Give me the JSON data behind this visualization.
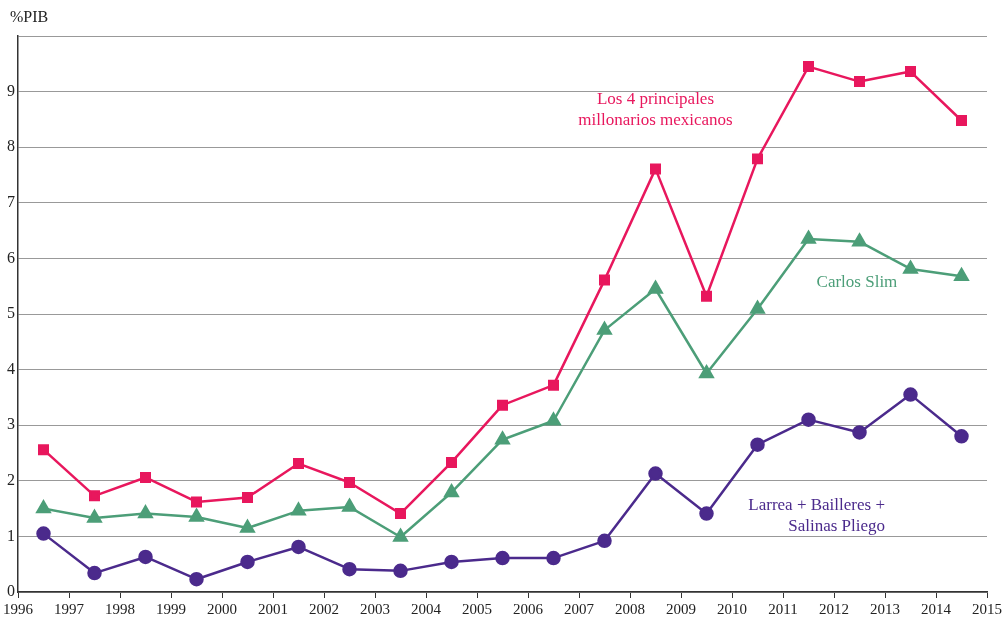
{
  "chart_data": {
    "type": "line",
    "ylabel": "%PIB",
    "x": [
      1996.5,
      1997.5,
      1998.5,
      1999.5,
      2000.5,
      2001.5,
      2002.5,
      2003.5,
      2004.5,
      2005.5,
      2006.5,
      2007.5,
      2008.5,
      2009.5,
      2010.5,
      2011.5,
      2012.5,
      2013.5,
      2014.5
    ],
    "series": [
      {
        "name": "Los 4 principales millonarios mexicanos",
        "color": "#e8175d",
        "marker": "square",
        "values": [
          2.56,
          1.73,
          2.06,
          1.62,
          1.7,
          2.31,
          1.97,
          1.41,
          2.33,
          3.36,
          3.72,
          5.61,
          7.61,
          5.32,
          7.79,
          9.45,
          9.18,
          9.36,
          8.48
        ]
      },
      {
        "name": "Carlos Slim",
        "color": "#4c9e78",
        "marker": "triangle",
        "values": [
          1.5,
          1.33,
          1.41,
          1.35,
          1.15,
          1.46,
          1.53,
          0.99,
          1.79,
          2.74,
          3.08,
          4.71,
          5.45,
          3.93,
          5.09,
          6.35,
          6.3,
          5.81,
          5.68
        ]
      },
      {
        "name": "Larrea + Bailleres + Salinas Pliego",
        "color": "#4b2a8c",
        "marker": "circle",
        "values": [
          1.05,
          0.34,
          0.63,
          0.23,
          0.54,
          0.81,
          0.41,
          0.38,
          0.54,
          0.61,
          0.61,
          0.92,
          2.13,
          1.41,
          2.65,
          3.1,
          2.87,
          3.55,
          2.8
        ]
      }
    ],
    "xlim": [
      1996,
      2015
    ],
    "xticks": [
      1996,
      1997,
      1998,
      1999,
      2000,
      2001,
      2002,
      2003,
      2004,
      2005,
      2006,
      2007,
      2008,
      2009,
      2010,
      2011,
      2012,
      2013,
      2014,
      2015
    ],
    "ylim": [
      0,
      10
    ],
    "yticks": [
      0,
      1,
      2,
      3,
      4,
      5,
      6,
      7,
      8,
      9,
      {
        "value": 10,
        "label": null
      }
    ],
    "grid": "y",
    "legend": false,
    "line_style": "solid"
  }
}
